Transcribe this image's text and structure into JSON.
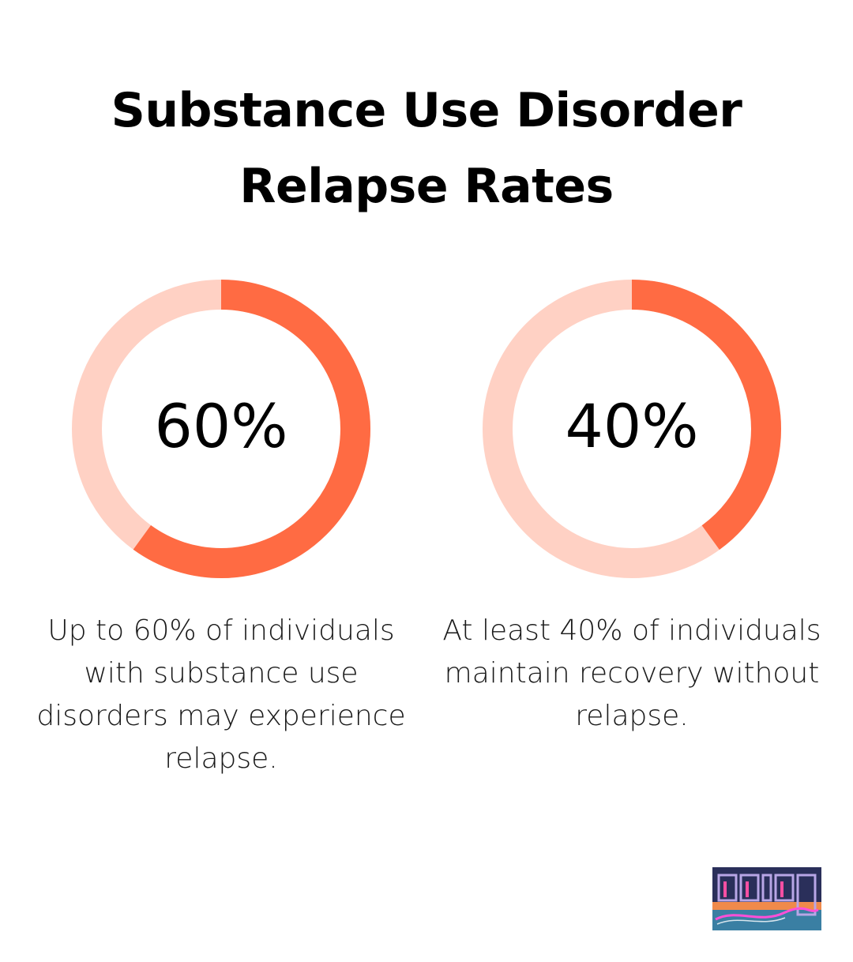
{
  "title_lines": [
    "Substance Use Disorder",
    "Relapse Rates"
  ],
  "colors": {
    "accent": "#ff6b43",
    "track": "#ffd1c4",
    "text": "#000000",
    "logo_bg": "#2a2f5a"
  },
  "chart_data": [
    {
      "type": "pie",
      "variant": "donut",
      "values": [
        60,
        40
      ],
      "highlighted_percent": 60,
      "label": "60%",
      "caption": "Up to 60% of individuals with substance use disorders may experience relapse."
    },
    {
      "type": "pie",
      "variant": "donut",
      "values": [
        40,
        60
      ],
      "highlighted_percent": 40,
      "label": "40%",
      "caption": "At least 40% of individuals maintain recovery without relapse."
    }
  ],
  "logo": {
    "icon": "amity-san-diego-logo",
    "text": "Amity San Diego"
  }
}
